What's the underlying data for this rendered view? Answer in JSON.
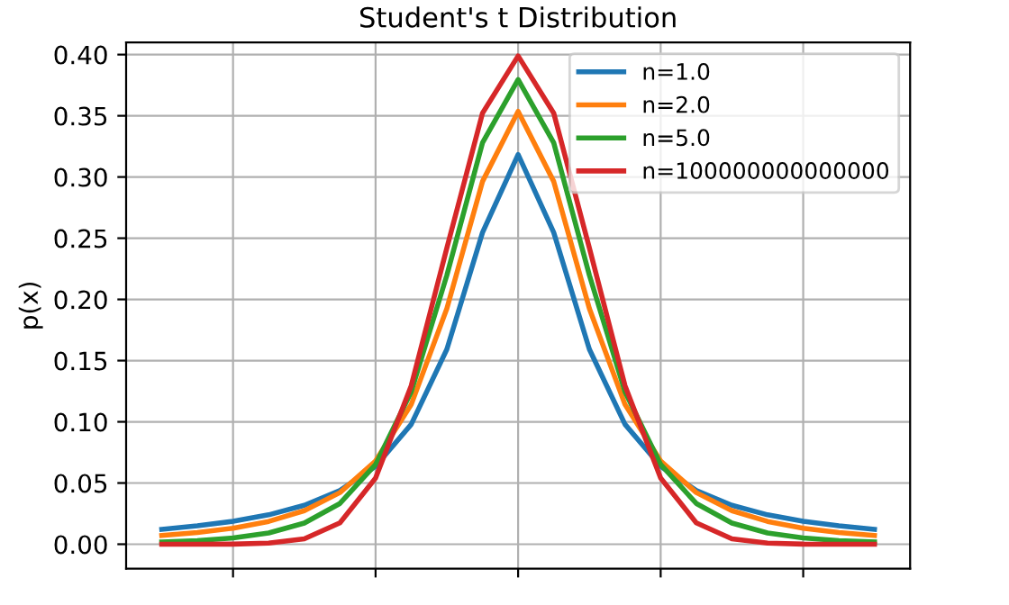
{
  "chart_data": {
    "type": "line",
    "title": "Student's t Distribution",
    "ylabel": "p(x)",
    "categories": [
      null,
      null,
      null,
      null,
      null,
      null,
      null,
      null,
      null,
      null,
      null,
      null,
      null,
      null,
      null,
      null,
      null,
      null,
      null,
      null,
      null
    ],
    "series": [
      {
        "name": "n=1.0",
        "color": "#1f77b4",
        "values": [
          0.0122,
          0.015,
          0.0187,
          0.024,
          0.0318,
          0.0439,
          0.0637,
          0.0979,
          0.1592,
          0.2546,
          0.3183,
          0.2546,
          0.1592,
          0.0979,
          0.0637,
          0.0439,
          0.0318,
          0.024,
          0.0187,
          0.015,
          0.0122
        ]
      },
      {
        "name": "n=2.0",
        "color": "#ff7f0e",
        "values": [
          0.0071,
          0.0095,
          0.0131,
          0.0186,
          0.0274,
          0.0422,
          0.068,
          0.1141,
          0.1925,
          0.2963,
          0.3536,
          0.2963,
          0.1925,
          0.1141,
          0.068,
          0.0422,
          0.0274,
          0.0186,
          0.0131,
          0.0095,
          0.0071
        ]
      },
      {
        "name": "n=5.0",
        "color": "#2ca02c",
        "values": [
          0.0018,
          0.0029,
          0.0051,
          0.0092,
          0.0173,
          0.0333,
          0.0651,
          0.1245,
          0.2197,
          0.3279,
          0.3796,
          0.3279,
          0.2197,
          0.1245,
          0.0651,
          0.0333,
          0.0173,
          0.0092,
          0.0051,
          0.0029,
          0.0018
        ]
      },
      {
        "name": "n=100000000000000",
        "color": "#d62728",
        "values": [
          0.0,
          0.0,
          0.0001,
          0.0009,
          0.0044,
          0.0175,
          0.054,
          0.1295,
          0.242,
          0.3521,
          0.3989,
          0.3521,
          0.242,
          0.1295,
          0.054,
          0.0175,
          0.0044,
          0.0009,
          0.0001,
          0.0,
          0.0
        ]
      }
    ],
    "ylim": [
      -0.02,
      0.41
    ],
    "yticks": [
      {
        "value": 0,
        "label": "0.00"
      },
      {
        "value": 0.05,
        "label": "0.05"
      },
      {
        "value": 0.1,
        "label": "0.10"
      },
      {
        "value": 0.15,
        "label": "0.15"
      },
      {
        "value": 0.2,
        "label": "0.20"
      },
      {
        "value": 0.25,
        "label": "0.25"
      },
      {
        "value": 0.3,
        "label": "0.30"
      },
      {
        "value": 0.35,
        "label": "0.35"
      },
      {
        "value": 0.4,
        "label": "0.40"
      }
    ],
    "grid": true,
    "legend": "top right",
    "marker": "none",
    "line_style": "solid"
  }
}
